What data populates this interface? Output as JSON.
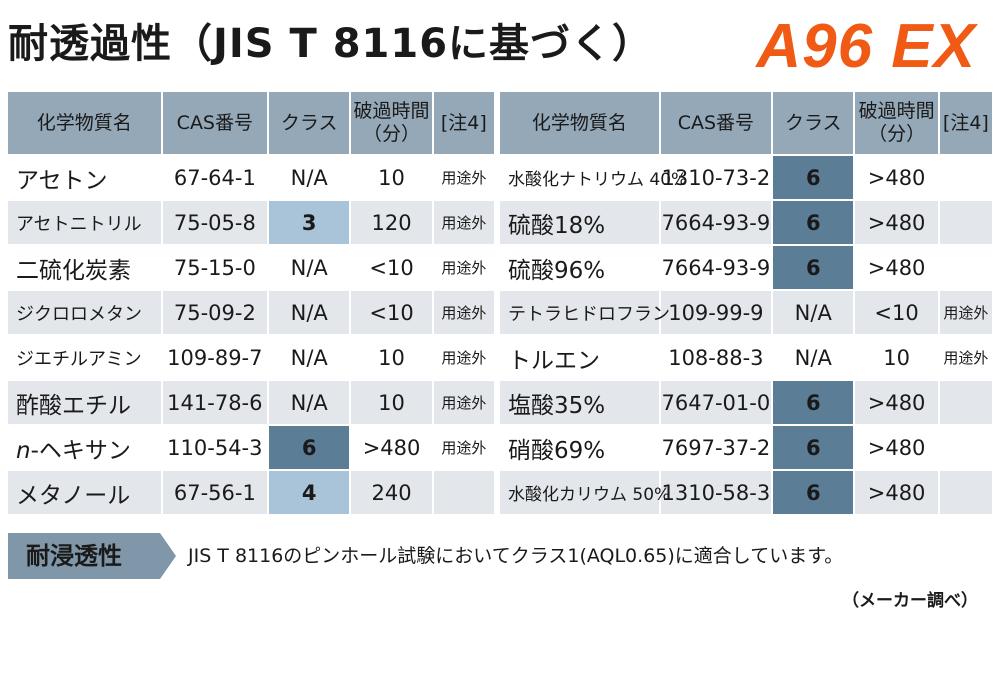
{
  "title": "耐透過性（JIS T 8116に基づく）",
  "brand": "A96 EX",
  "headers": [
    "化学物質名",
    "CAS番号",
    "クラス",
    "破過時間\n（分）",
    "[注4]"
  ],
  "left_rows": [
    {
      "name": "アセトン",
      "cas": "67-64-1",
      "class": "N/A",
      "time": "10",
      "note": "用途外"
    },
    {
      "name": "アセトニトリル",
      "cas": "75-05-8",
      "class": "3",
      "time": "120",
      "note": "用途外"
    },
    {
      "name": "二硫化炭素",
      "cas": "75-15-0",
      "class": "N/A",
      "time": "<10",
      "note": "用途外"
    },
    {
      "name": "ジクロロメタン",
      "cas": "75-09-2",
      "class": "N/A",
      "time": "<10",
      "note": "用途外"
    },
    {
      "name": "ジエチルアミン",
      "cas": "109-89-7",
      "class": "N/A",
      "time": "10",
      "note": "用途外"
    },
    {
      "name": "酢酸エチル",
      "cas": "141-78-6",
      "class": "N/A",
      "time": "10",
      "note": "用途外"
    },
    {
      "name_prefix": "n",
      "name": "-ヘキサン",
      "cas": "110-54-3",
      "class": "6",
      "time": ">480",
      "note": "用途外"
    },
    {
      "name": "メタノール",
      "cas": "67-56-1",
      "class": "4",
      "time": "240",
      "note": ""
    }
  ],
  "right_rows": [
    {
      "name": "水酸化ナトリウム 40%",
      "cas": "1310-73-2",
      "class": "6",
      "time": ">480",
      "note": ""
    },
    {
      "name": "硫酸18%",
      "cas": "7664-93-9",
      "class": "6",
      "time": ">480",
      "note": ""
    },
    {
      "name": "硫酸96%",
      "cas": "7664-93-9",
      "class": "6",
      "time": ">480",
      "note": ""
    },
    {
      "name": "テトラヒドロフラン",
      "cas": "109-99-9",
      "class": "N/A",
      "time": "<10",
      "note": "用途外"
    },
    {
      "name": "トルエン",
      "cas": "108-88-3",
      "class": "N/A",
      "time": "10",
      "note": "用途外"
    },
    {
      "name": "塩酸35%",
      "cas": "7647-01-0",
      "class": "6",
      "time": ">480",
      "note": ""
    },
    {
      "name": "硝酸69%",
      "cas": "7697-37-2",
      "class": "6",
      "time": ">480",
      "note": ""
    },
    {
      "name": "水酸化カリウム 50%",
      "cas": "1310-58-3",
      "class": "6",
      "time": ">480",
      "note": ""
    }
  ],
  "penetration": {
    "label": "耐浸透性",
    "text": "JIS T 8116のピンホール試験においてクラス1(AQL0.65)に適合しています。"
  },
  "source": "（メーカー調べ）",
  "colors": {
    "brand": "#f05a14",
    "header_bg": "#94a8b8",
    "alt_row_bg": "#e3e6ea",
    "class_light": "#a9c3d8",
    "class_dark": "#5c7d96"
  }
}
